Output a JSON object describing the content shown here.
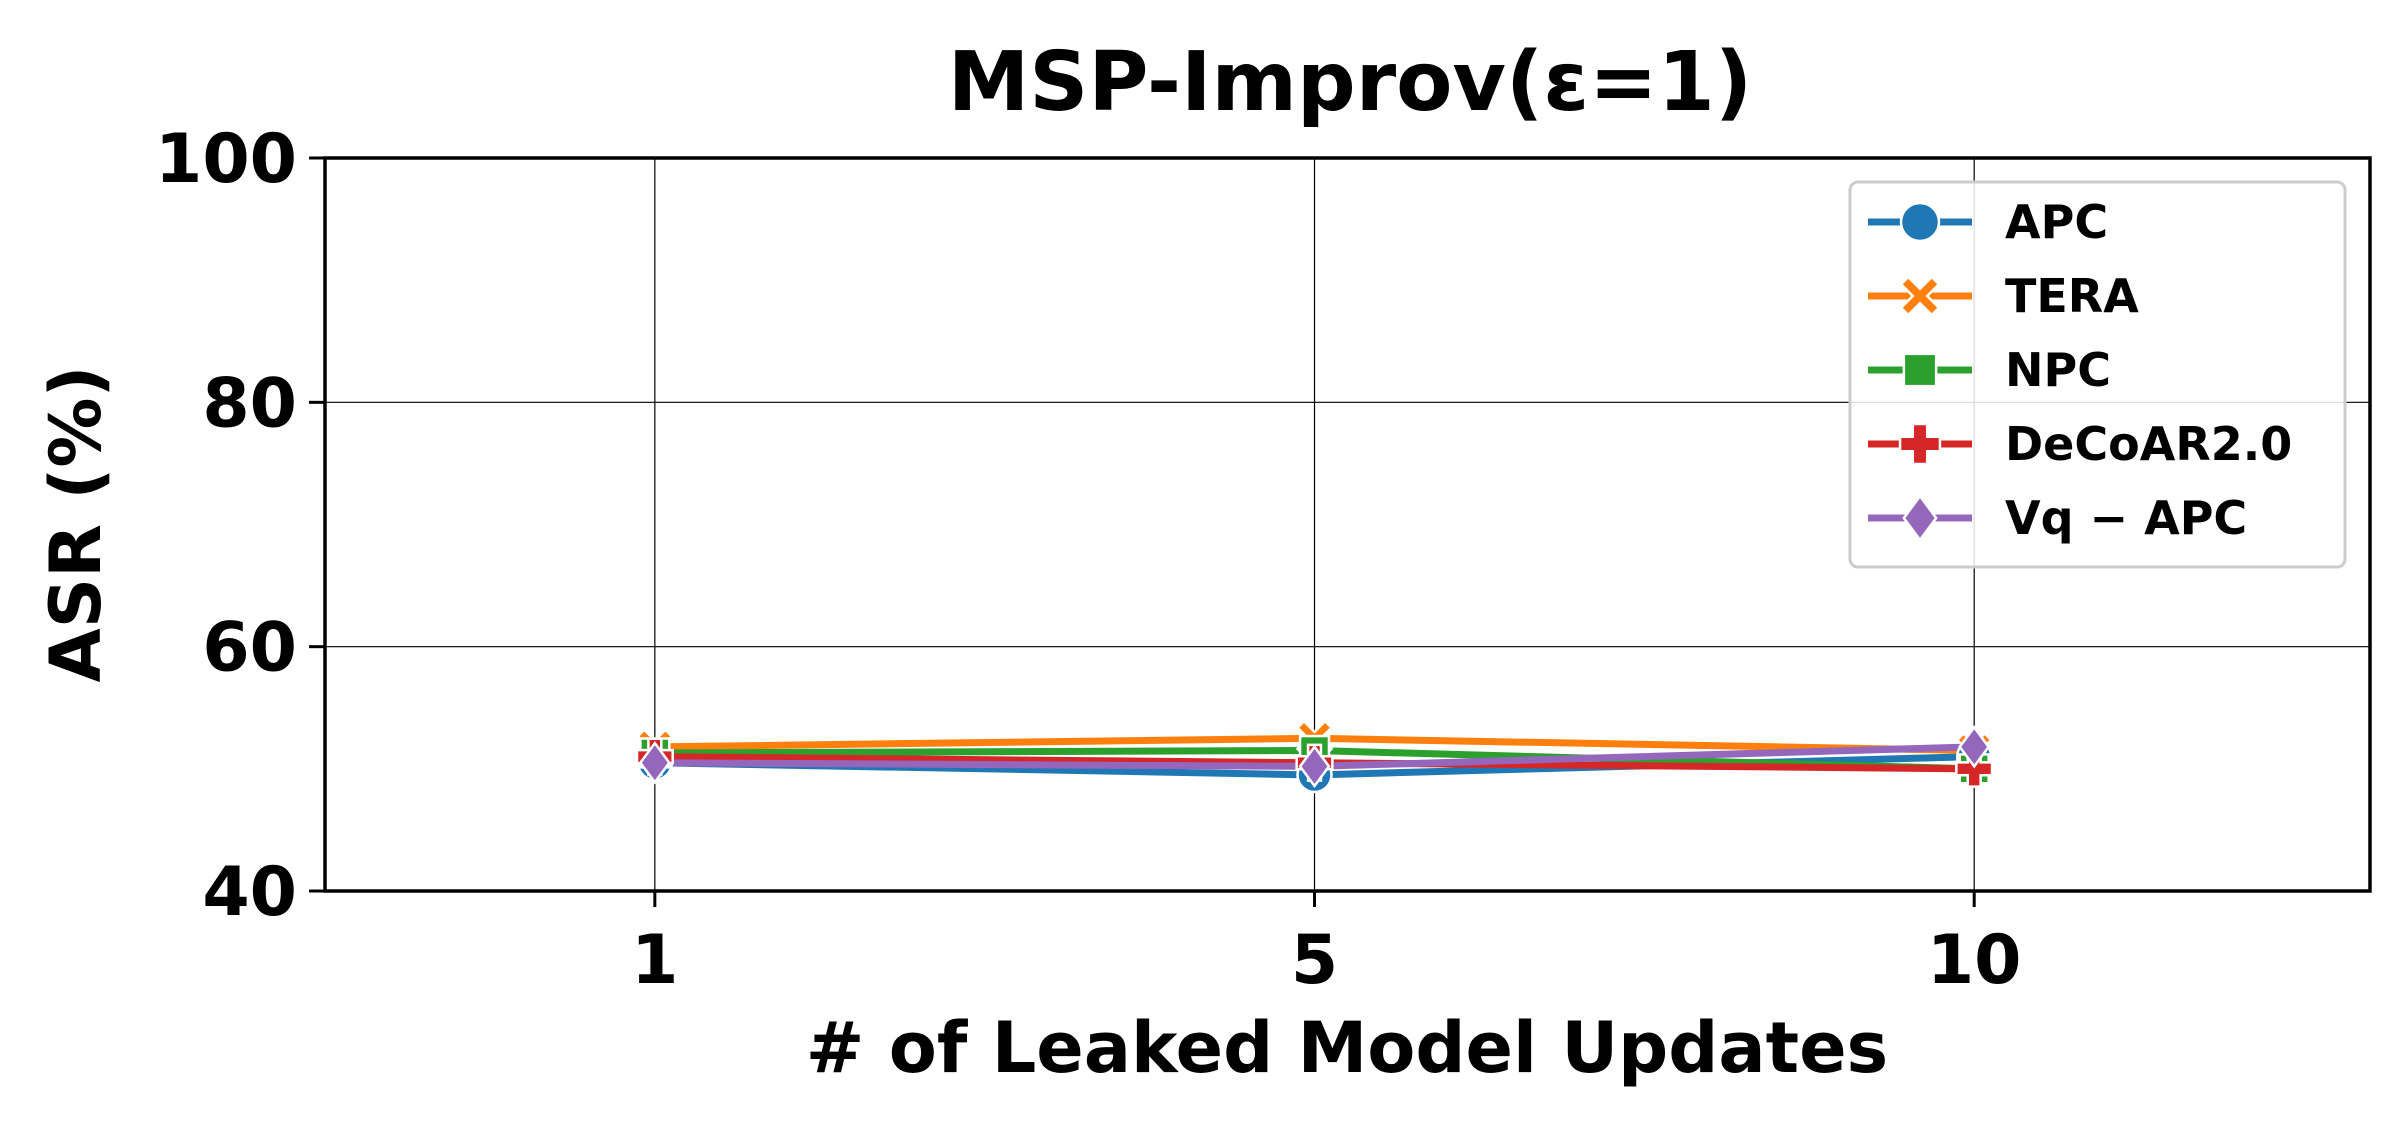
{
  "chart_data": {
    "type": "line",
    "title": "MSP-Improv(ε=1)",
    "xlabel": "# of Leaked Model Updates",
    "ylabel": "ASR (%)",
    "x": [
      "1",
      "5",
      "10"
    ],
    "xlim": [
      -0.5,
      2.6
    ],
    "ylim": [
      40,
      100
    ],
    "yticks": [
      40,
      60,
      80,
      100
    ],
    "grid": true,
    "legend_position": "top-right",
    "series": [
      {
        "name": "APC",
        "color": "#1f77b4",
        "marker": "circle",
        "values": [
          50.5,
          49.5,
          51.0
        ]
      },
      {
        "name": "TERA",
        "color": "#ff7f0e",
        "marker": "x",
        "values": [
          51.8,
          52.5,
          51.5
        ]
      },
      {
        "name": "NPC",
        "color": "#2ca02c",
        "marker": "square",
        "values": [
          51.3,
          51.5,
          50.0
        ]
      },
      {
        "name": "DeCoAR2.0",
        "color": "#d62728",
        "marker": "plus",
        "values": [
          51.0,
          50.5,
          50.0
        ]
      },
      {
        "name": "Vq − APC",
        "color": "#9467bd",
        "marker": "diamond",
        "values": [
          50.5,
          50.2,
          51.8
        ]
      }
    ]
  }
}
